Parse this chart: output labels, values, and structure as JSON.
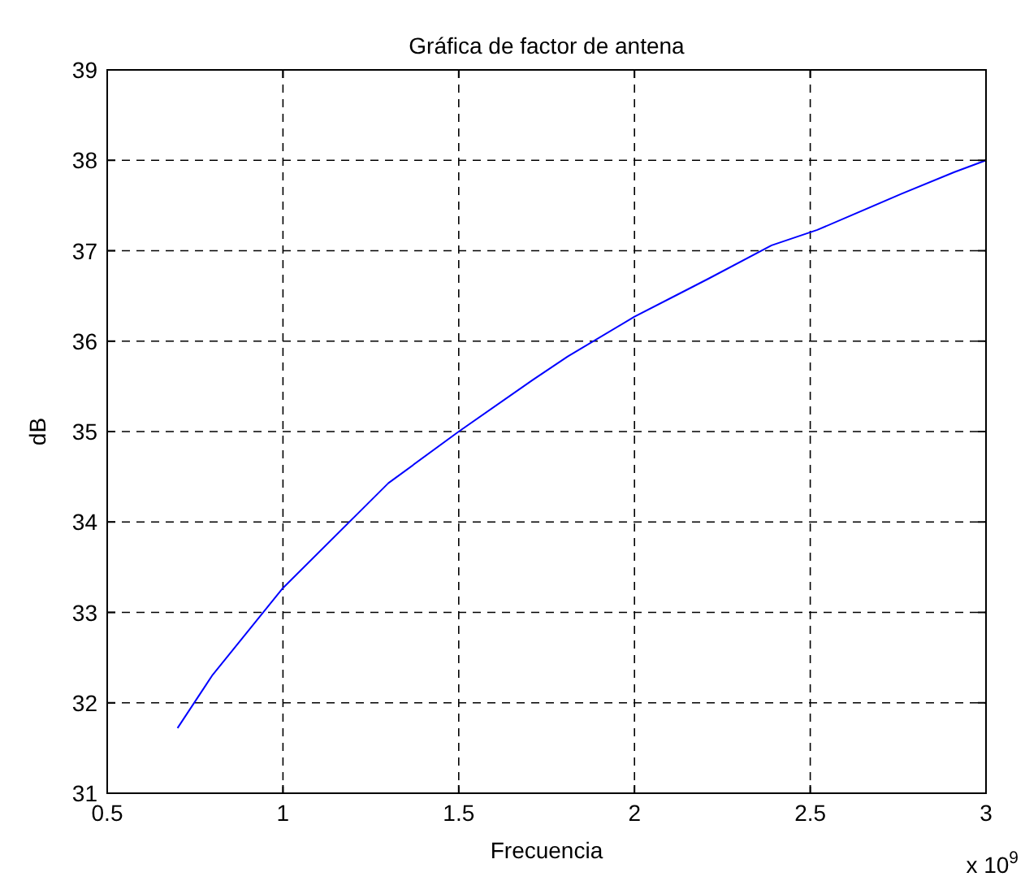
{
  "chart_data": {
    "type": "line",
    "title": "Gráfica de factor de antena",
    "xlabel": "Frecuencia",
    "ylabel": "dB",
    "x": [
      0.7,
      0.8,
      1.0,
      1.3,
      1.5,
      1.71,
      1.81,
      2.0,
      2.12,
      2.21,
      2.39,
      2.52,
      2.76,
      2.91,
      3.0
    ],
    "series": [
      {
        "color": "#0000ff",
        "values": [
          31.72,
          32.31,
          33.27,
          34.43,
          35.0,
          35.57,
          35.83,
          36.27,
          36.51,
          36.69,
          37.06,
          37.23,
          37.63,
          37.87,
          38.0
        ]
      }
    ],
    "xlim": [
      0.5,
      3
    ],
    "xticks": [
      0.5,
      1,
      1.5,
      2,
      2.5,
      3
    ],
    "ylim": [
      31,
      39
    ],
    "yticks": [
      31,
      32,
      33,
      34,
      35,
      36,
      37,
      38,
      39
    ],
    "grid": true,
    "line_style": "solid",
    "marker": "none",
    "annotations": [
      "x 10$^{9}$"
    ]
  }
}
